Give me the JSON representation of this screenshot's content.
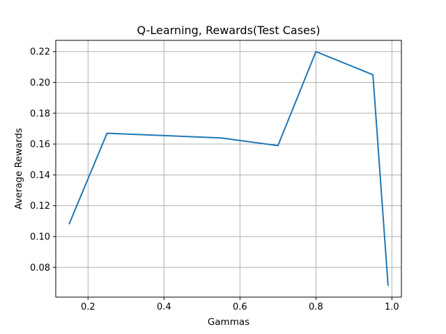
{
  "chart_data": {
    "type": "line",
    "title": "Q-Learning, Rewards(Test Cases)",
    "xlabel": "Gammas",
    "ylabel": "Average Rewards",
    "xlim": [
      0.115,
      1.025
    ],
    "ylim": [
      0.0607,
      0.2273
    ],
    "xticks": [
      0.2,
      0.4,
      0.6,
      0.8,
      1.0
    ],
    "xtick_labels": [
      "0.2",
      "0.4",
      "0.6",
      "0.8",
      "1.0"
    ],
    "yticks": [
      0.08,
      0.1,
      0.12,
      0.14,
      0.16,
      0.18,
      0.2,
      0.22
    ],
    "ytick_labels": [
      "0.08",
      "0.10",
      "0.12",
      "0.14",
      "0.16",
      "0.18",
      "0.20",
      "0.22"
    ],
    "grid": true,
    "series": [
      {
        "color": "#1f77b4",
        "x": [
          0.15,
          0.25,
          0.55,
          0.7,
          0.8,
          0.95,
          0.99
        ],
        "y": [
          0.108,
          0.167,
          0.164,
          0.159,
          0.22,
          0.205,
          0.068
        ]
      }
    ]
  }
}
